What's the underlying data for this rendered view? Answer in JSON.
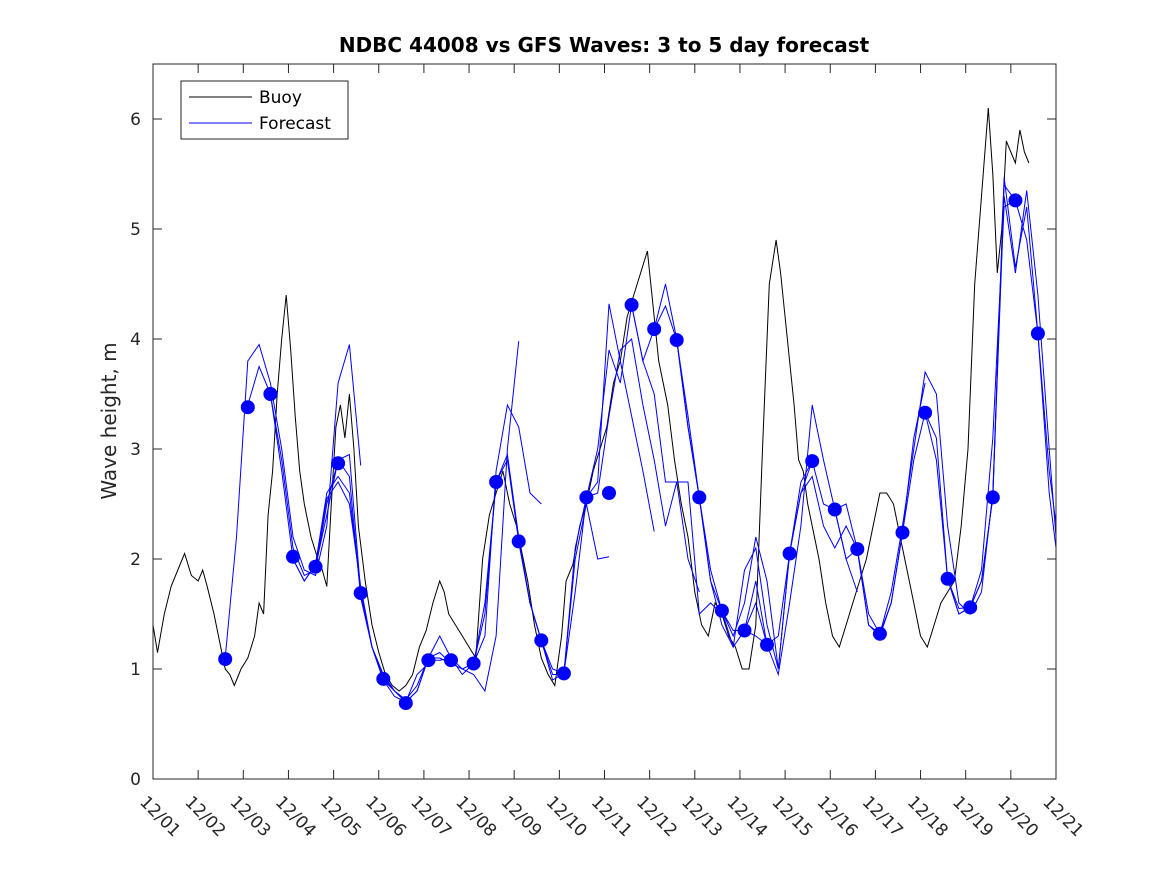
{
  "chart_data": {
    "type": "line",
    "title": "NDBC 44008 vs GFS Waves: 3 to 5 day forecast",
    "xlabel": "",
    "ylabel": "Wave height, m",
    "xlim_days": [
      1,
      21
    ],
    "ylim": [
      0,
      6.5
    ],
    "x_tick_labels": [
      "12/01",
      "12/02",
      "12/03",
      "12/04",
      "12/05",
      "12/06",
      "12/07",
      "12/08",
      "12/09",
      "12/10",
      "12/11",
      "12/12",
      "12/13",
      "12/14",
      "12/15",
      "12/16",
      "12/17",
      "12/18",
      "12/19",
      "12/20",
      "12/21"
    ],
    "y_ticks": [
      0,
      1,
      2,
      3,
      4,
      5,
      6
    ],
    "grid": false,
    "legend": {
      "position": "top-left",
      "entries": [
        "Buoy",
        "Forecast"
      ]
    },
    "colors": {
      "buoy": "#000000",
      "forecast": "#0000ff",
      "markers": "#0000ff"
    },
    "series": [
      {
        "name": "Buoy",
        "x": [
          1.0,
          1.1,
          1.25,
          1.4,
          1.55,
          1.7,
          1.85,
          2.0,
          2.1,
          2.2,
          2.35,
          2.5,
          2.6,
          2.7,
          2.8,
          2.95,
          3.1,
          3.25,
          3.35,
          3.45,
          3.55,
          3.65,
          3.75,
          3.85,
          3.95,
          4.05,
          4.15,
          4.25,
          4.35,
          4.5,
          4.65,
          4.75,
          4.85,
          4.95,
          5.05,
          5.15,
          5.25,
          5.35,
          5.45,
          5.55,
          5.7,
          5.85,
          6.0,
          6.15,
          6.3,
          6.45,
          6.6,
          6.75,
          6.9,
          7.05,
          7.2,
          7.35,
          7.45,
          7.55,
          7.7,
          7.85,
          8.0,
          8.15,
          8.3,
          8.45,
          8.6,
          8.75,
          8.9,
          9.05,
          9.15,
          9.3,
          9.45,
          9.6,
          9.75,
          9.9,
          10.05,
          10.15,
          10.3,
          10.45,
          10.6,
          10.75,
          10.9,
          11.05,
          11.2,
          11.35,
          11.5,
          11.65,
          11.8,
          11.95,
          12.1,
          12.2,
          12.3,
          12.4,
          12.55,
          12.7,
          12.85,
          13.0,
          13.15,
          13.3,
          13.45,
          13.6,
          13.75,
          13.9,
          14.05,
          14.2,
          14.35,
          14.5,
          14.65,
          14.8,
          14.9,
          15.0,
          15.1,
          15.2,
          15.3,
          15.4,
          15.5,
          15.6,
          15.75,
          15.9,
          16.05,
          16.2,
          16.35,
          16.5,
          16.65,
          16.8,
          16.95,
          17.1,
          17.25,
          17.4,
          17.55,
          17.7,
          17.85,
          18.0,
          18.15,
          18.3,
          18.45,
          18.6,
          18.75,
          18.9,
          19.05,
          19.2,
          19.35,
          19.5,
          19.6,
          19.7,
          19.8,
          19.9,
          20.0,
          20.1,
          20.2,
          20.3,
          20.4
        ],
        "y": [
          1.4,
          1.15,
          1.5,
          1.75,
          1.9,
          2.05,
          1.85,
          1.8,
          1.9,
          1.75,
          1.5,
          1.2,
          1.0,
          0.95,
          0.85,
          1.0,
          1.1,
          1.3,
          1.6,
          1.5,
          2.4,
          2.8,
          3.5,
          4.0,
          4.4,
          3.9,
          3.3,
          2.8,
          2.5,
          2.2,
          2.0,
          1.9,
          1.75,
          2.5,
          3.2,
          3.4,
          3.1,
          3.5,
          3.0,
          2.3,
          1.8,
          1.4,
          1.15,
          0.95,
          0.85,
          0.8,
          0.85,
          0.95,
          1.2,
          1.35,
          1.6,
          1.8,
          1.7,
          1.5,
          1.4,
          1.3,
          1.2,
          1.1,
          2.0,
          2.4,
          2.6,
          2.8,
          2.5,
          2.3,
          2.1,
          1.8,
          1.4,
          1.1,
          0.95,
          0.85,
          1.3,
          1.8,
          1.95,
          2.3,
          2.5,
          2.8,
          3.0,
          3.2,
          3.6,
          3.8,
          4.2,
          4.4,
          4.6,
          4.8,
          4.2,
          3.8,
          3.6,
          3.4,
          2.9,
          2.5,
          2.2,
          1.7,
          1.4,
          1.3,
          1.6,
          1.5,
          1.3,
          1.2,
          1.0,
          1.0,
          1.4,
          3.0,
          4.5,
          4.9,
          4.6,
          4.2,
          3.8,
          3.4,
          2.9,
          2.8,
          2.5,
          2.3,
          2.0,
          1.6,
          1.3,
          1.2,
          1.4,
          1.6,
          1.8,
          2.0,
          2.3,
          2.6,
          2.6,
          2.5,
          2.2,
          1.9,
          1.6,
          1.3,
          1.2,
          1.4,
          1.6,
          1.7,
          1.8,
          2.3,
          3.0,
          4.5,
          5.3,
          6.1,
          5.5,
          4.6,
          5.0,
          5.8,
          5.7,
          5.6,
          5.9,
          5.7,
          5.6
        ]
      }
    ],
    "forecast_runs": [
      {
        "x": [
          2.6,
          2.85,
          3.1,
          3.35,
          3.6,
          3.85,
          4.1,
          4.35,
          4.6,
          4.85,
          5.1,
          5.35,
          5.6
        ],
        "y": [
          1.1,
          2.2,
          3.8,
          3.95,
          3.6,
          3.0,
          2.2,
          1.9,
          1.85,
          2.3,
          3.6,
          3.95,
          2.85
        ]
      },
      {
        "x": [
          3.1,
          3.35,
          3.6,
          3.85,
          4.1,
          4.35,
          4.6,
          4.85,
          5.1,
          5.35,
          5.6,
          5.85,
          6.1
        ],
        "y": [
          3.4,
          3.75,
          3.5,
          2.9,
          2.1,
          1.85,
          1.9,
          2.5,
          2.9,
          2.95,
          1.7,
          1.2,
          0.9
        ]
      },
      {
        "x": [
          3.6,
          3.85,
          4.1,
          4.35,
          4.6,
          4.85,
          5.1,
          5.35,
          5.6,
          5.85,
          6.1,
          6.35,
          6.6
        ],
        "y": [
          3.5,
          2.8,
          2.0,
          1.8,
          1.95,
          2.6,
          2.75,
          2.6,
          1.7,
          1.2,
          0.9,
          0.75,
          0.7
        ]
      },
      {
        "x": [
          4.1,
          4.35,
          4.6,
          4.85,
          5.1,
          5.35,
          5.6,
          5.85,
          6.1,
          6.35,
          6.6,
          6.85,
          7.1
        ],
        "y": [
          2.0,
          1.8,
          1.95,
          2.55,
          2.7,
          2.5,
          1.75,
          1.2,
          0.95,
          0.8,
          0.7,
          0.95,
          1.05
        ]
      },
      {
        "x": [
          4.6,
          4.85,
          5.1,
          5.35,
          5.6,
          5.85,
          6.1,
          6.35,
          6.6,
          6.85,
          7.1,
          7.35,
          7.6
        ],
        "y": [
          1.93,
          2.4,
          2.9,
          2.75,
          1.65,
          1.2,
          0.92,
          0.8,
          0.72,
          0.85,
          1.1,
          1.15,
          1.05
        ]
      },
      {
        "x": [
          6.1,
          6.35,
          6.6,
          6.85,
          7.1,
          7.35,
          7.6,
          7.85,
          8.1,
          8.35,
          8.6,
          8.85,
          9.1
        ],
        "y": [
          0.9,
          0.8,
          0.7,
          0.8,
          1.1,
          1.3,
          1.1,
          1.0,
          0.95,
          0.8,
          1.3,
          3.0,
          3.98
        ]
      },
      {
        "x": [
          6.6,
          6.85,
          7.1,
          7.35,
          7.6,
          7.85,
          8.1,
          8.35,
          8.6,
          8.85,
          9.1,
          9.35,
          9.6
        ],
        "y": [
          0.7,
          0.8,
          1.1,
          1.1,
          1.05,
          1.0,
          1.05,
          1.3,
          2.8,
          3.4,
          3.2,
          2.6,
          2.5
        ]
      },
      {
        "x": [
          7.1,
          7.35,
          7.6,
          7.85,
          8.1,
          8.35,
          8.6,
          8.85,
          9.1,
          9.35,
          9.6,
          9.85,
          10.1
        ],
        "y": [
          1.08,
          1.08,
          1.1,
          0.95,
          1.05,
          1.5,
          2.7,
          2.95,
          2.2,
          1.6,
          1.26,
          0.95,
          0.95
        ]
      },
      {
        "x": [
          8.1,
          8.35,
          8.6,
          8.85,
          9.1,
          9.35,
          9.6,
          9.85,
          10.1,
          10.35,
          10.6,
          10.85,
          11.1
        ],
        "y": [
          1.05,
          1.6,
          2.7,
          2.9,
          2.16,
          1.6,
          1.26,
          1.0,
          0.96,
          2.0,
          2.5,
          2.0,
          2.02
        ]
      },
      {
        "x": [
          9.1,
          9.35,
          9.6,
          9.85,
          10.1,
          10.35,
          10.6,
          10.85,
          11.1,
          11.35,
          11.6,
          11.85,
          12.1
        ],
        "y": [
          2.16,
          1.6,
          1.26,
          0.9,
          0.96,
          2.1,
          2.56,
          2.7,
          4.32,
          3.8,
          3.3,
          2.8,
          2.25
        ]
      },
      {
        "x": [
          10.1,
          10.35,
          10.6,
          10.85,
          11.1,
          11.35,
          11.6,
          11.85,
          12.1,
          12.35,
          12.6,
          12.85,
          13.1
        ],
        "y": [
          0.96,
          1.7,
          2.56,
          3.0,
          3.9,
          3.6,
          4.31,
          3.8,
          3.5,
          2.7,
          2.7,
          2.0,
          1.7
        ]
      },
      {
        "x": [
          10.6,
          10.85,
          11.1,
          11.35,
          11.6,
          11.85,
          12.1,
          12.35,
          12.6,
          12.85,
          13.1,
          13.35,
          13.6
        ],
        "y": [
          2.56,
          2.6,
          3.3,
          3.9,
          4.0,
          3.4,
          2.9,
          2.3,
          2.7,
          2.7,
          1.5,
          1.6,
          1.5
        ]
      },
      {
        "x": [
          11.6,
          11.85,
          12.1,
          12.35,
          12.6,
          12.85,
          13.1,
          13.35,
          13.6,
          13.85,
          14.1,
          14.35,
          14.6
        ],
        "y": [
          4.31,
          3.8,
          4.09,
          4.5,
          4.0,
          3.2,
          2.56,
          1.9,
          1.53,
          1.35,
          1.35,
          1.3,
          1.22
        ]
      },
      {
        "x": [
          12.1,
          12.35,
          12.6,
          12.85,
          13.1,
          13.35,
          13.6,
          13.85,
          14.1,
          14.35,
          14.6,
          14.85,
          15.1
        ],
        "y": [
          4.09,
          4.3,
          3.99,
          3.2,
          2.56,
          1.8,
          1.4,
          1.2,
          1.9,
          2.1,
          1.4,
          1.0,
          2.05
        ]
      },
      {
        "x": [
          12.6,
          12.85,
          13.1,
          13.35,
          13.6,
          13.85,
          14.1,
          14.35,
          14.6,
          14.85,
          15.1,
          15.35,
          15.6
        ],
        "y": [
          3.99,
          3.3,
          2.56,
          1.8,
          1.53,
          1.3,
          1.6,
          2.2,
          1.8,
          1.0,
          2.05,
          2.7,
          2.89
        ]
      },
      {
        "x": [
          13.6,
          13.85,
          14.1,
          14.35,
          14.6,
          14.85,
          15.1,
          15.35,
          15.6,
          15.85,
          16.1,
          16.35,
          16.6
        ],
        "y": [
          1.53,
          1.2,
          1.35,
          1.8,
          1.22,
          0.95,
          1.6,
          2.3,
          3.4,
          2.9,
          2.45,
          2.0,
          1.7
        ]
      },
      {
        "x": [
          14.1,
          14.35,
          14.6,
          14.85,
          15.1,
          15.35,
          15.6,
          15.85,
          16.1,
          16.35,
          16.6,
          16.85,
          17.1
        ],
        "y": [
          1.35,
          1.6,
          1.22,
          1.3,
          2.05,
          2.6,
          2.89,
          2.5,
          2.45,
          2.5,
          2.09,
          1.4,
          1.32
        ]
      },
      {
        "x": [
          15.1,
          15.35,
          15.6,
          15.85,
          16.1,
          16.35,
          16.6,
          16.85,
          17.1,
          17.35,
          17.6,
          17.85,
          18.1
        ],
        "y": [
          2.05,
          2.6,
          2.75,
          2.3,
          2.1,
          2.3,
          2.09,
          1.4,
          1.3,
          1.6,
          2.24,
          3.1,
          3.6
        ]
      },
      {
        "x": [
          16.1,
          16.35,
          16.6,
          16.85,
          17.1,
          17.35,
          17.6,
          17.85,
          18.1,
          18.35,
          18.6,
          18.85,
          19.1
        ],
        "y": [
          2.45,
          2.0,
          2.09,
          1.5,
          1.32,
          1.6,
          2.24,
          2.9,
          3.33,
          3.1,
          1.82,
          1.5,
          1.56
        ]
      },
      {
        "x": [
          17.1,
          17.35,
          17.6,
          17.85,
          18.1,
          18.35,
          18.6,
          18.85,
          19.1,
          19.35,
          19.6,
          19.85,
          20.1
        ],
        "y": [
          1.32,
          1.7,
          2.3,
          3.0,
          3.7,
          3.5,
          2.3,
          1.6,
          1.5,
          1.7,
          2.6,
          5.4,
          5.26
        ]
      },
      {
        "x": [
          18.1,
          18.35,
          18.6,
          18.85,
          19.1,
          19.35,
          19.6,
          19.85,
          20.1,
          20.35,
          20.6,
          20.85,
          21.1
        ],
        "y": [
          3.33,
          2.9,
          1.82,
          1.5,
          1.56,
          1.8,
          2.56,
          5.47,
          4.65,
          5.2,
          4.05,
          2.8,
          2.0
        ]
      },
      {
        "x": [
          18.6,
          18.85,
          19.1,
          19.35,
          19.6,
          19.85,
          20.1,
          20.35,
          20.6,
          20.85,
          21.0
        ],
        "y": [
          1.82,
          1.55,
          1.56,
          1.8,
          2.56,
          5.3,
          4.6,
          5.35,
          4.4,
          3.0,
          2.2
        ]
      },
      {
        "x": [
          19.1,
          19.35,
          19.6,
          19.85,
          20.1,
          20.35,
          20.6,
          20.85,
          21.0
        ],
        "y": [
          1.56,
          1.9,
          3.1,
          5.2,
          5.26,
          4.9,
          4.05,
          2.6,
          2.1
        ]
      }
    ],
    "forecast_markers": {
      "x": [
        2.6,
        3.1,
        3.6,
        4.1,
        4.6,
        5.1,
        5.6,
        6.1,
        6.6,
        7.1,
        7.6,
        8.1,
        8.6,
        9.1,
        9.6,
        10.1,
        10.6,
        11.1,
        11.6,
        12.1,
        12.6,
        13.1,
        13.6,
        14.1,
        14.6,
        15.1,
        15.6,
        16.1,
        16.6,
        17.1,
        17.6,
        18.1,
        18.6,
        19.1,
        19.6,
        20.1,
        20.6
      ],
      "y": [
        1.09,
        3.38,
        3.5,
        2.02,
        1.93,
        2.87,
        1.69,
        0.91,
        0.69,
        1.08,
        1.08,
        1.05,
        2.7,
        2.16,
        1.26,
        0.96,
        2.56,
        2.6,
        4.31,
        4.09,
        3.99,
        2.56,
        1.53,
        1.35,
        1.22,
        2.05,
        2.89,
        2.45,
        2.09,
        1.32,
        2.24,
        3.33,
        1.82,
        1.56,
        2.56,
        5.26,
        4.05
      ]
    }
  }
}
